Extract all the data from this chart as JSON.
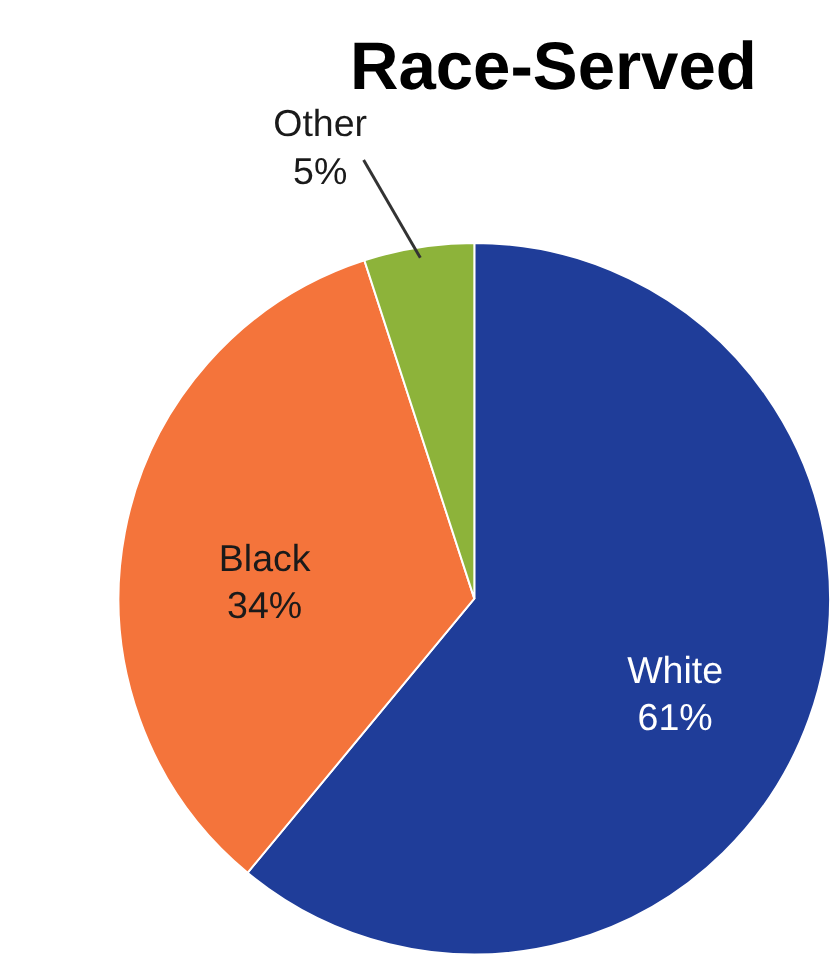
{
  "chart_data": {
    "type": "pie",
    "title": "Race-Served",
    "categories": [
      "White",
      "Black",
      "Other"
    ],
    "values": [
      61,
      34,
      5
    ],
    "colors": [
      "#1f3d99",
      "#f4743b",
      "#8db33a"
    ],
    "value_labels": [
      "61%",
      "34%",
      "5%"
    ],
    "legend": false
  }
}
